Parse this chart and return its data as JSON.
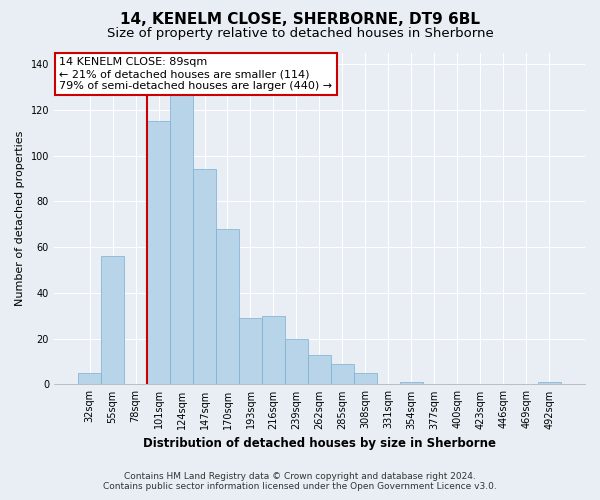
{
  "title": "14, KENELM CLOSE, SHERBORNE, DT9 6BL",
  "subtitle": "Size of property relative to detached houses in Sherborne",
  "xlabel": "Distribution of detached houses by size in Sherborne",
  "ylabel": "Number of detached properties",
  "categories": [
    "32sqm",
    "55sqm",
    "78sqm",
    "101sqm",
    "124sqm",
    "147sqm",
    "170sqm",
    "193sqm",
    "216sqm",
    "239sqm",
    "262sqm",
    "285sqm",
    "308sqm",
    "331sqm",
    "354sqm",
    "377sqm",
    "400sqm",
    "423sqm",
    "446sqm",
    "469sqm",
    "492sqm"
  ],
  "values": [
    5,
    56,
    0,
    115,
    133,
    94,
    68,
    29,
    30,
    20,
    13,
    9,
    5,
    0,
    1,
    0,
    0,
    0,
    0,
    0,
    1
  ],
  "bar_color": "#b8d4e8",
  "bar_edge_color": "#7aafd4",
  "highlight_line_color": "#cc0000",
  "annotation_text": "14 KENELM CLOSE: 89sqm\n← 21% of detached houses are smaller (114)\n79% of semi-detached houses are larger (440) →",
  "annotation_box_color": "#ffffff",
  "annotation_box_edge_color": "#cc0000",
  "ylim": [
    0,
    145
  ],
  "yticks": [
    0,
    20,
    40,
    60,
    80,
    100,
    120,
    140
  ],
  "footer_line1": "Contains HM Land Registry data © Crown copyright and database right 2024.",
  "footer_line2": "Contains public sector information licensed under the Open Government Licence v3.0.",
  "bg_color": "#e8eef4",
  "grid_color": "#ffffff",
  "title_fontsize": 11,
  "subtitle_fontsize": 9.5,
  "xlabel_fontsize": 8.5,
  "ylabel_fontsize": 8,
  "tick_fontsize": 7,
  "annotation_fontsize": 8,
  "footer_fontsize": 6.5
}
